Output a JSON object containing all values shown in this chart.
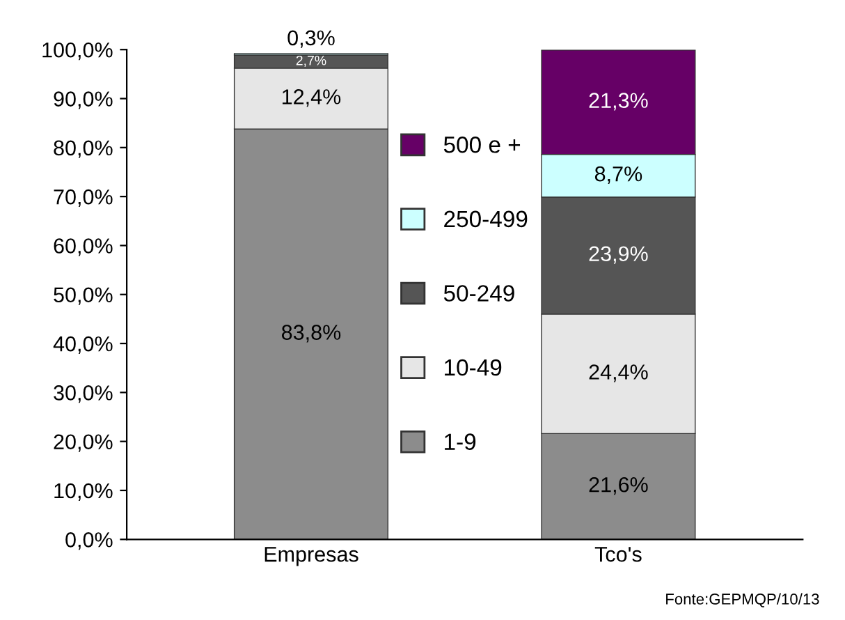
{
  "chart_data": {
    "type": "bar",
    "stacked": true,
    "categories": [
      "Empresas",
      "Tco's"
    ],
    "series": [
      {
        "name": "1-9",
        "color": "#8c8c8c",
        "values": [
          83.8,
          21.6
        ],
        "value_labels": [
          "83,8%",
          "21,6%"
        ]
      },
      {
        "name": "10-49",
        "color": "#e6e6e6",
        "values": [
          12.4,
          24.4
        ],
        "value_labels": [
          "12,4%",
          "24,4%"
        ]
      },
      {
        "name": "50-249",
        "color": "#555555",
        "values": [
          2.7,
          23.9
        ],
        "value_labels": [
          "2,7%",
          "23,9%"
        ]
      },
      {
        "name": "250-499",
        "color": "#ccffff",
        "values": [
          0.3,
          8.7
        ],
        "value_labels": [
          "0,3%",
          "8,7%"
        ]
      },
      {
        "name": "500 e +",
        "color": "#660066",
        "values": [
          null,
          21.3
        ],
        "value_labels": [
          null,
          "21,3%"
        ]
      }
    ],
    "ylim": [
      0,
      100
    ],
    "yticks": [
      {
        "value": 0,
        "label": "0,0%"
      },
      {
        "value": 10,
        "label": "10,0%"
      },
      {
        "value": 20,
        "label": "20,0%"
      },
      {
        "value": 30,
        "label": "30,0%"
      },
      {
        "value": 40,
        "label": "40,0%"
      },
      {
        "value": 50,
        "label": "50,0%"
      },
      {
        "value": 60,
        "label": "60,0%"
      },
      {
        "value": 70,
        "label": "70,0%"
      },
      {
        "value": 80,
        "label": "80,0%"
      },
      {
        "value": 90,
        "label": "90,0%"
      },
      {
        "value": 100,
        "label": "100,0%"
      }
    ],
    "legend": "center",
    "grid": false,
    "annotations": [
      "Fonte:GEPMQP/10/13"
    ]
  }
}
